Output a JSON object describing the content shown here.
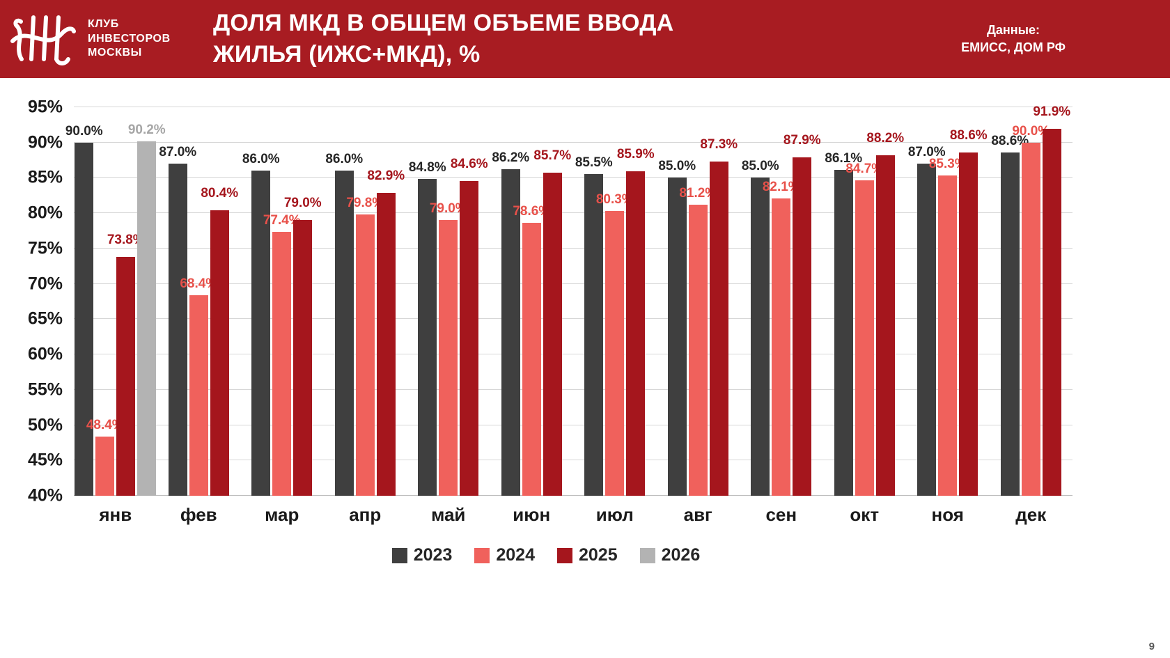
{
  "header": {
    "logo_lines": [
      "КЛУБ",
      "ИНВЕСТОРОВ",
      "МОСКВЫ"
    ],
    "title_line1": "ДОЛЯ МКД В ОБЩЕМ ОБЪЕМЕ ВВОДА",
    "title_line2": "ЖИЛЬЯ (ИЖС+МКД),  %",
    "source_line1": "Данные:",
    "source_line2": "ЕМИСС, ДОМ РФ",
    "background_color": "#a81c22"
  },
  "chart_data": {
    "type": "bar",
    "title": "ДОЛЯ МКД В ОБЩЕМ ОБЪЕМЕ ВВОДА ЖИЛЬЯ (ИЖС+МКД), %",
    "categories": [
      "янв",
      "фев",
      "мар",
      "апр",
      "май",
      "июн",
      "июл",
      "авг",
      "сен",
      "окт",
      "ноя",
      "дек"
    ],
    "series": [
      {
        "name": "2023",
        "color": "#3f3f3f",
        "label_color": "#262626",
        "values": [
          90.0,
          87.0,
          86.0,
          86.0,
          84.8,
          86.2,
          85.5,
          85.0,
          85.0,
          86.1,
          87.0,
          88.6
        ]
      },
      {
        "name": "2024",
        "color": "#f0615c",
        "label_color": "#e8514a",
        "values": [
          48.4,
          68.4,
          77.4,
          79.8,
          79.0,
          78.6,
          80.3,
          81.2,
          82.1,
          84.7,
          85.3,
          90.0
        ]
      },
      {
        "name": "2025",
        "color": "#a5161d",
        "label_color": "#a5161d",
        "values": [
          73.8,
          80.4,
          79.0,
          82.9,
          84.6,
          85.7,
          85.9,
          87.3,
          87.9,
          88.2,
          88.6,
          91.9
        ]
      },
      {
        "name": "2026",
        "color": "#b3b3b3",
        "label_color": "#a6a6a6",
        "values": [
          90.2,
          null,
          null,
          null,
          null,
          null,
          null,
          null,
          null,
          null,
          null,
          null
        ]
      }
    ],
    "ylim": [
      40,
      95
    ],
    "ytick_step": 5,
    "ytick_suffix": "%",
    "value_suffix": "%",
    "xlabel": "",
    "ylabel": "",
    "grid": true,
    "legend_position": "bottom"
  },
  "footer": {
    "page_number": "9"
  }
}
